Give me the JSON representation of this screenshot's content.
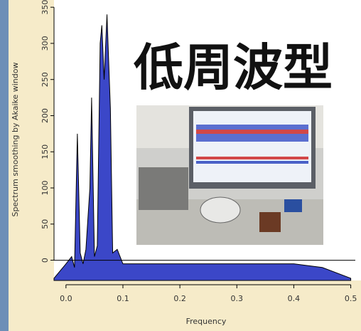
{
  "chart_data": {
    "type": "area",
    "title": "低周波型",
    "x_label": "Frequency",
    "y_label": "Spectrum smoothing by  Akaike  window",
    "x": [
      -0.021,
      0.0,
      0.01,
      0.015,
      0.02,
      0.025,
      0.03,
      0.035,
      0.042,
      0.045,
      0.05,
      0.055,
      0.06,
      0.063,
      0.067,
      0.072,
      0.078,
      0.082,
      0.09,
      0.1,
      0.2,
      0.3,
      0.4,
      0.45,
      0.5
    ],
    "values": [
      -25,
      -5,
      5,
      -10,
      175,
      10,
      -5,
      15,
      100,
      225,
      5,
      20,
      300,
      325,
      250,
      340,
      210,
      10,
      15,
      -5,
      -5,
      -5,
      -5,
      -10,
      -25
    ],
    "color": "#3b47c8",
    "xlim": [
      -0.021,
      0.508
    ],
    "ylim": [
      -28,
      360
    ],
    "xticks": [
      {
        "value": 0,
        "label": "0.0"
      },
      0.1,
      0.2,
      0.3,
      0.4,
      0.5
    ],
    "yticks": [
      0,
      50,
      100,
      150,
      200,
      250,
      300,
      350
    ]
  }
}
